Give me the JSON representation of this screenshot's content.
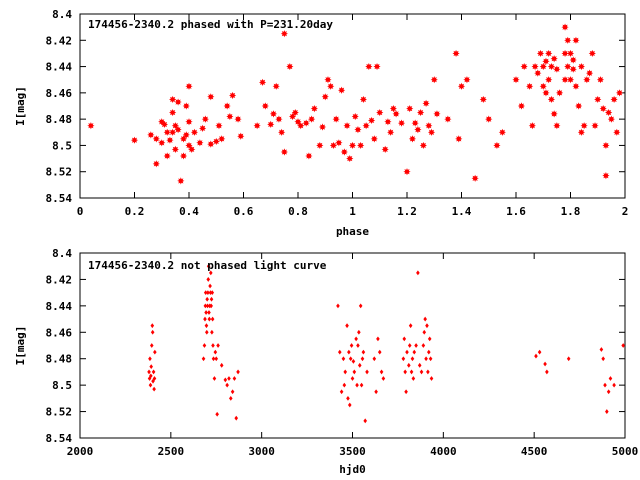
{
  "chart_data": [
    {
      "type": "scatter",
      "title": "174456-2340.2 phased with P=231.20day",
      "xlabel": "phase",
      "ylabel": "I[mag]",
      "xlim": [
        0,
        2
      ],
      "ylim": [
        8.54,
        8.4
      ],
      "y_inverted": true,
      "grid": false,
      "marker_color": "#ff0000",
      "marker": "star",
      "x_ticks": [
        0,
        0.2,
        0.4,
        0.6,
        0.8,
        1,
        1.2,
        1.4,
        1.6,
        1.8,
        2
      ],
      "x_tick_labels": [
        "0",
        "0.2",
        "0.4",
        "0.6",
        "0.8",
        "1",
        "1.2",
        "1.4",
        "1.6",
        "1.8",
        "2"
      ],
      "y_ticks": [
        8.4,
        8.42,
        8.44,
        8.46,
        8.48,
        8.5,
        8.52,
        8.54
      ],
      "y_tick_labels": [
        "8.4",
        "8.42",
        "8.44",
        "8.46",
        "8.48",
        "8.5",
        "8.52",
        "8.54"
      ],
      "points": [
        [
          0.04,
          8.485
        ],
        [
          0.2,
          8.496
        ],
        [
          0.26,
          8.492
        ],
        [
          0.28,
          8.495
        ],
        [
          0.28,
          8.514
        ],
        [
          0.3,
          8.482
        ],
        [
          0.3,
          8.498
        ],
        [
          0.31,
          8.484
        ],
        [
          0.32,
          8.49
        ],
        [
          0.32,
          8.508
        ],
        [
          0.33,
          8.496
        ],
        [
          0.34,
          8.465
        ],
        [
          0.34,
          8.475
        ],
        [
          0.34,
          8.49
        ],
        [
          0.35,
          8.485
        ],
        [
          0.35,
          8.503
        ],
        [
          0.36,
          8.467
        ],
        [
          0.36,
          8.488
        ],
        [
          0.37,
          8.527
        ],
        [
          0.38,
          8.495
        ],
        [
          0.38,
          8.508
        ],
        [
          0.39,
          8.492
        ],
        [
          0.39,
          8.47
        ],
        [
          0.4,
          8.455
        ],
        [
          0.4,
          8.482
        ],
        [
          0.4,
          8.5
        ],
        [
          0.41,
          8.503
        ],
        [
          0.42,
          8.49
        ],
        [
          0.44,
          8.498
        ],
        [
          0.45,
          8.487
        ],
        [
          0.46,
          8.48
        ],
        [
          0.48,
          8.499
        ],
        [
          0.48,
          8.463
        ],
        [
          0.5,
          8.497
        ],
        [
          0.51,
          8.485
        ],
        [
          0.52,
          8.495
        ],
        [
          0.54,
          8.47
        ],
        [
          0.55,
          8.478
        ],
        [
          0.56,
          8.462
        ],
        [
          0.58,
          8.48
        ],
        [
          0.59,
          8.493
        ],
        [
          0.65,
          8.485
        ],
        [
          0.67,
          8.452
        ],
        [
          0.68,
          8.47
        ],
        [
          0.7,
          8.484
        ],
        [
          0.71,
          8.476
        ],
        [
          0.72,
          8.455
        ],
        [
          0.73,
          8.48
        ],
        [
          0.74,
          8.49
        ],
        [
          0.75,
          8.505
        ],
        [
          0.75,
          8.415
        ],
        [
          0.77,
          8.44
        ],
        [
          0.78,
          8.478
        ],
        [
          0.79,
          8.475
        ],
        [
          0.8,
          8.482
        ],
        [
          0.81,
          8.485
        ],
        [
          0.83,
          8.483
        ],
        [
          0.84,
          8.508
        ],
        [
          0.85,
          8.48
        ],
        [
          0.86,
          8.472
        ],
        [
          0.88,
          8.5
        ],
        [
          0.89,
          8.486
        ],
        [
          0.9,
          8.463
        ],
        [
          0.91,
          8.45
        ],
        [
          0.92,
          8.455
        ],
        [
          0.93,
          8.5
        ],
        [
          0.94,
          8.48
        ],
        [
          0.95,
          8.498
        ],
        [
          0.96,
          8.458
        ],
        [
          0.97,
          8.505
        ],
        [
          0.98,
          8.485
        ],
        [
          0.99,
          8.51
        ],
        [
          1.0,
          8.5
        ],
        [
          1.01,
          8.478
        ],
        [
          1.02,
          8.488
        ],
        [
          1.03,
          8.5
        ],
        [
          1.04,
          8.465
        ],
        [
          1.05,
          8.485
        ],
        [
          1.06,
          8.44
        ],
        [
          1.07,
          8.481
        ],
        [
          1.08,
          8.495
        ],
        [
          1.09,
          8.44
        ],
        [
          1.1,
          8.475
        ],
        [
          1.12,
          8.503
        ],
        [
          1.13,
          8.482
        ],
        [
          1.14,
          8.49
        ],
        [
          1.15,
          8.472
        ],
        [
          1.16,
          8.476
        ],
        [
          1.18,
          8.483
        ],
        [
          1.2,
          8.52
        ],
        [
          1.21,
          8.472
        ],
        [
          1.22,
          8.495
        ],
        [
          1.23,
          8.483
        ],
        [
          1.24,
          8.488
        ],
        [
          1.25,
          8.475
        ],
        [
          1.26,
          8.5
        ],
        [
          1.27,
          8.468
        ],
        [
          1.28,
          8.485
        ],
        [
          1.29,
          8.49
        ],
        [
          1.3,
          8.45
        ],
        [
          1.31,
          8.476
        ],
        [
          1.35,
          8.48
        ],
        [
          1.38,
          8.43
        ],
        [
          1.39,
          8.495
        ],
        [
          1.4,
          8.455
        ],
        [
          1.42,
          8.45
        ],
        [
          1.45,
          8.525
        ],
        [
          1.48,
          8.465
        ],
        [
          1.5,
          8.48
        ],
        [
          1.53,
          8.5
        ],
        [
          1.55,
          8.49
        ],
        [
          1.6,
          8.45
        ],
        [
          1.62,
          8.47
        ],
        [
          1.63,
          8.44
        ],
        [
          1.65,
          8.455
        ],
        [
          1.66,
          8.485
        ],
        [
          1.67,
          8.44
        ],
        [
          1.68,
          8.445
        ],
        [
          1.69,
          8.43
        ],
        [
          1.7,
          8.44
        ],
        [
          1.7,
          8.455
        ],
        [
          1.71,
          8.436
        ],
        [
          1.71,
          8.46
        ],
        [
          1.72,
          8.43
        ],
        [
          1.72,
          8.45
        ],
        [
          1.73,
          8.44
        ],
        [
          1.73,
          8.465
        ],
        [
          1.74,
          8.434
        ],
        [
          1.74,
          8.476
        ],
        [
          1.75,
          8.485
        ],
        [
          1.75,
          8.442
        ],
        [
          1.76,
          8.46
        ],
        [
          1.78,
          8.45
        ],
        [
          1.78,
          8.41
        ],
        [
          1.78,
          8.43
        ],
        [
          1.79,
          8.42
        ],
        [
          1.79,
          8.44
        ],
        [
          1.8,
          8.43
        ],
        [
          1.8,
          8.45
        ],
        [
          1.81,
          8.442
        ],
        [
          1.81,
          8.435
        ],
        [
          1.82,
          8.455
        ],
        [
          1.82,
          8.42
        ],
        [
          1.83,
          8.47
        ],
        [
          1.84,
          8.49
        ],
        [
          1.84,
          8.44
        ],
        [
          1.85,
          8.485
        ],
        [
          1.86,
          8.45
        ],
        [
          1.87,
          8.445
        ],
        [
          1.88,
          8.43
        ],
        [
          1.89,
          8.485
        ],
        [
          1.9,
          8.465
        ],
        [
          1.91,
          8.45
        ],
        [
          1.92,
          8.472
        ],
        [
          1.93,
          8.523
        ],
        [
          1.93,
          8.5
        ],
        [
          1.94,
          8.475
        ],
        [
          1.95,
          8.48
        ],
        [
          1.96,
          8.465
        ],
        [
          1.97,
          8.49
        ],
        [
          1.98,
          8.46
        ]
      ]
    },
    {
      "type": "scatter",
      "title": "174456-2340.2 not phased light curve",
      "xlabel": "hjd0",
      "ylabel": "I[mag]",
      "xlim": [
        2000,
        5000
      ],
      "ylim": [
        8.54,
        8.4
      ],
      "y_inverted": true,
      "grid": false,
      "marker_color": "#ff0000",
      "marker": "diamond",
      "x_ticks": [
        2000,
        2500,
        3000,
        3500,
        4000,
        4500,
        5000
      ],
      "x_tick_labels": [
        "2000",
        "2500",
        "3000",
        "3500",
        "4000",
        "4500",
        "5000"
      ],
      "y_ticks": [
        8.4,
        8.42,
        8.44,
        8.46,
        8.48,
        8.5,
        8.52,
        8.54
      ],
      "y_tick_labels": [
        "8.4",
        "8.42",
        "8.44",
        "8.46",
        "8.48",
        "8.5",
        "8.52",
        "8.54"
      ],
      "points": [
        [
          2380,
          8.49
        ],
        [
          2383,
          8.495
        ],
        [
          2385,
          8.48
        ],
        [
          2388,
          8.5
        ],
        [
          2390,
          8.493
        ],
        [
          2392,
          8.486
        ],
        [
          2395,
          8.47
        ],
        [
          2398,
          8.455
        ],
        [
          2400,
          8.46
        ],
        [
          2402,
          8.497
        ],
        [
          2405,
          8.49
        ],
        [
          2408,
          8.503
        ],
        [
          2410,
          8.495
        ],
        [
          2412,
          8.475
        ],
        [
          2680,
          8.48
        ],
        [
          2685,
          8.47
        ],
        [
          2688,
          8.45
        ],
        [
          2690,
          8.44
        ],
        [
          2692,
          8.43
        ],
        [
          2694,
          8.445
        ],
        [
          2696,
          8.455
        ],
        [
          2698,
          8.46
        ],
        [
          2700,
          8.435
        ],
        [
          2702,
          8.44
        ],
        [
          2704,
          8.43
        ],
        [
          2706,
          8.42
        ],
        [
          2708,
          8.41
        ],
        [
          2710,
          8.445
        ],
        [
          2712,
          8.45
        ],
        [
          2714,
          8.44
        ],
        [
          2716,
          8.425
        ],
        [
          2718,
          8.43
        ],
        [
          2720,
          8.415
        ],
        [
          2722,
          8.44
        ],
        [
          2724,
          8.435
        ],
        [
          2726,
          8.46
        ],
        [
          2728,
          8.43
        ],
        [
          2730,
          8.45
        ],
        [
          2732,
          8.47
        ],
        [
          2735,
          8.48
        ],
        [
          2740,
          8.495
        ],
        [
          2745,
          8.475
        ],
        [
          2750,
          8.48
        ],
        [
          2755,
          8.522
        ],
        [
          2760,
          8.47
        ],
        [
          2780,
          8.485
        ],
        [
          2800,
          8.496
        ],
        [
          2810,
          8.5
        ],
        [
          2820,
          8.495
        ],
        [
          2830,
          8.51
        ],
        [
          2840,
          8.505
        ],
        [
          2850,
          8.495
        ],
        [
          2860,
          8.525
        ],
        [
          2870,
          8.49
        ],
        [
          3420,
          8.44
        ],
        [
          3430,
          8.475
        ],
        [
          3440,
          8.505
        ],
        [
          3450,
          8.48
        ],
        [
          3455,
          8.5
        ],
        [
          3460,
          8.49
        ],
        [
          3470,
          8.455
        ],
        [
          3475,
          8.51
        ],
        [
          3480,
          8.475
        ],
        [
          3485,
          8.515
        ],
        [
          3490,
          8.48
        ],
        [
          3495,
          8.47
        ],
        [
          3500,
          8.495
        ],
        [
          3505,
          8.482
        ],
        [
          3510,
          8.49
        ],
        [
          3520,
          8.465
        ],
        [
          3525,
          8.5
        ],
        [
          3530,
          8.47
        ],
        [
          3535,
          8.46
        ],
        [
          3540,
          8.485
        ],
        [
          3545,
          8.44
        ],
        [
          3550,
          8.5
        ],
        [
          3555,
          8.48
        ],
        [
          3560,
          8.475
        ],
        [
          3570,
          8.527
        ],
        [
          3580,
          8.49
        ],
        [
          3620,
          8.48
        ],
        [
          3630,
          8.505
        ],
        [
          3640,
          8.465
        ],
        [
          3650,
          8.475
        ],
        [
          3660,
          8.49
        ],
        [
          3670,
          8.495
        ],
        [
          3780,
          8.48
        ],
        [
          3785,
          8.465
        ],
        [
          3790,
          8.49
        ],
        [
          3795,
          8.505
        ],
        [
          3800,
          8.475
        ],
        [
          3810,
          8.485
        ],
        [
          3815,
          8.47
        ],
        [
          3820,
          8.455
        ],
        [
          3825,
          8.49
        ],
        [
          3830,
          8.48
        ],
        [
          3835,
          8.495
        ],
        [
          3840,
          8.475
        ],
        [
          3850,
          8.47
        ],
        [
          3860,
          8.415
        ],
        [
          3870,
          8.485
        ],
        [
          3880,
          8.49
        ],
        [
          3890,
          8.47
        ],
        [
          3895,
          8.46
        ],
        [
          3900,
          8.45
        ],
        [
          3905,
          8.48
        ],
        [
          3910,
          8.455
        ],
        [
          3915,
          8.49
        ],
        [
          3920,
          8.475
        ],
        [
          3925,
          8.465
        ],
        [
          3930,
          8.48
        ],
        [
          3935,
          8.495
        ],
        [
          4510,
          8.478
        ],
        [
          4530,
          8.475
        ],
        [
          4560,
          8.484
        ],
        [
          4570,
          8.49
        ],
        [
          4690,
          8.48
        ],
        [
          4870,
          8.473
        ],
        [
          4880,
          8.48
        ],
        [
          4890,
          8.5
        ],
        [
          4900,
          8.52
        ],
        [
          4910,
          8.505
        ],
        [
          4920,
          8.495
        ],
        [
          4940,
          8.5
        ],
        [
          4990,
          8.47
        ]
      ]
    }
  ]
}
